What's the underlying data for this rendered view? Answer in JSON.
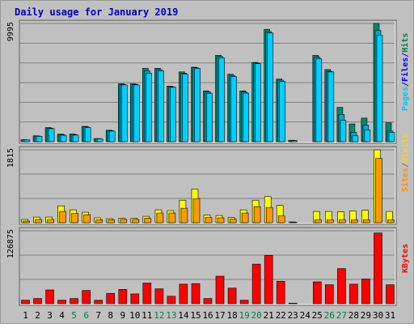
{
  "chart_data": {
    "type": "bar",
    "title": "Daily usage for January 2019",
    "categories": [
      "1",
      "2",
      "3",
      "4",
      "5",
      "6",
      "7",
      "8",
      "9",
      "10",
      "11",
      "12",
      "13",
      "14",
      "15",
      "16",
      "17",
      "18",
      "19",
      "20",
      "21",
      "22",
      "23",
      "24",
      "25",
      "26",
      "27",
      "28",
      "29",
      "30",
      "31"
    ],
    "weekend_days": [
      "5",
      "6",
      "12",
      "13",
      "19",
      "20",
      "26",
      "27"
    ],
    "panels": [
      {
        "id": "top",
        "y_max_label": "9995",
        "ylim": [
          0,
          9995
        ],
        "side_labels": [
          {
            "text": "Hits",
            "color": "#008040"
          },
          {
            "text": "/",
            "color": "#0000ff"
          },
          {
            "text": "Files",
            "color": "#0000ff"
          },
          {
            "text": "/",
            "color": "#0000ff"
          },
          {
            "text": "Pages",
            "color": "#00c8ff"
          }
        ],
        "series": [
          {
            "name": "Hits",
            "color": "#008a6a",
            "values": [
              170,
              500,
              1200,
              650,
              650,
              1300,
              270,
              970,
              4900,
              4900,
              6200,
              6200,
              4700,
              5900,
              6300,
              4300,
              7300,
              5700,
              4300,
              6700,
              9500,
              5300,
              120,
              0,
              7300,
              6100,
              2900,
              1500,
              2000,
              10000,
              1600
            ]
          },
          {
            "name": "Files",
            "color": "#00a8d8",
            "values": [
              160,
              480,
              1150,
              600,
              600,
              1250,
              260,
              940,
              4850,
              4850,
              6000,
              6100,
              4650,
              5800,
              6250,
              4200,
              7200,
              5600,
              4200,
              6650,
              9300,
              5200,
              100,
              0,
              7150,
              5950,
              2300,
              800,
              1400,
              9400,
              900
            ]
          },
          {
            "name": "Pages",
            "color": "#00d0ff",
            "values": [
              150,
              450,
              1100,
              550,
              560,
              1200,
              240,
              900,
              4800,
              4800,
              5800,
              6000,
              4600,
              5700,
              6200,
              4100,
              7100,
              5500,
              4100,
              6600,
              9200,
              5100,
              90,
              0,
              7000,
              5900,
              1800,
              500,
              1000,
              9000,
              800
            ]
          }
        ]
      },
      {
        "id": "middle",
        "y_max_label": "1815",
        "ylim": [
          0,
          1815
        ],
        "side_labels": [
          {
            "text": "Visits",
            "color": "#ffd800"
          },
          {
            "text": "/",
            "color": "#b07000"
          },
          {
            "text": "Sites",
            "color": "#ff9000"
          }
        ],
        "series": [
          {
            "name": "Visits",
            "color": "#ffff00",
            "values": [
              80,
              140,
              140,
              420,
              320,
              260,
              120,
              100,
              110,
              110,
              160,
              320,
              300,
              560,
              840,
              190,
              180,
              130,
              320,
              560,
              650,
              430,
              20,
              0,
              280,
              280,
              270,
              290,
              310,
              1815,
              280
            ]
          },
          {
            "name": "Sites",
            "color": "#ff9900",
            "values": [
              40,
              80,
              80,
              280,
              230,
              200,
              70,
              70,
              80,
              80,
              110,
              240,
              240,
              360,
              600,
              130,
              120,
              90,
              240,
              400,
              380,
              170,
              10,
              0,
              70,
              70,
              70,
              70,
              70,
              1600,
              70
            ]
          }
        ]
      },
      {
        "id": "bottom",
        "y_max_label": "126875",
        "ylim": [
          0,
          126875
        ],
        "side_labels": [
          {
            "text": "KBytes",
            "color": "#ff0000"
          }
        ],
        "series": [
          {
            "name": "KBytes",
            "color": "#ff0000",
            "values": [
              6000,
              9000,
              24000,
              6000,
              9000,
              23000,
              6000,
              18000,
              25000,
              17000,
              36000,
              26000,
              13000,
              34000,
              35000,
              9000,
              48000,
              27000,
              6000,
              69000,
              84000,
              39000,
              1000,
              0,
              38000,
              33000,
              61000,
              34000,
              43000,
              123000,
              33000
            ]
          }
        ]
      }
    ],
    "colors": {
      "background": "#c0c0c0",
      "page_bg": "#ffffff",
      "grid": "#808080",
      "title": "#0000c0",
      "weekday_label": "#000000",
      "weekend_label": "#008040"
    }
  }
}
